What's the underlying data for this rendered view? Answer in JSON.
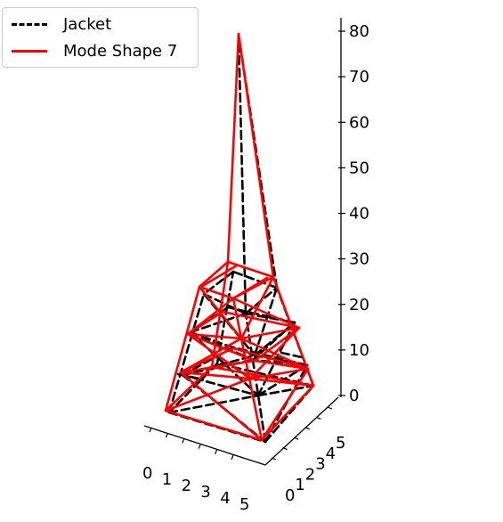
{
  "chart_data": {
    "type": "line",
    "projection": "3d",
    "legend": {
      "placement": "top-left",
      "entries": [
        {
          "label": "Jacket",
          "style": "dashed",
          "color": "#000000"
        },
        {
          "label": "Mode Shape 7",
          "style": "solid",
          "color": "#ff0000"
        }
      ]
    },
    "axes": {
      "x": {
        "ticks": [
          "0",
          "1",
          "2",
          "3",
          "4",
          "5"
        ],
        "range": [
          0,
          5
        ]
      },
      "y": {
        "ticks": [
          "0",
          "1",
          "2",
          "3",
          "4",
          "5"
        ],
        "range": [
          0,
          5
        ]
      },
      "z": {
        "ticks": [
          "0",
          "10",
          "20",
          "30",
          "40",
          "50",
          "60",
          "70",
          "80"
        ],
        "range": [
          0,
          82
        ]
      }
    },
    "series": [
      {
        "name": "Jacket",
        "style": "dashed",
        "color": "#000000"
      },
      {
        "name": "Mode Shape 7",
        "style": "solid",
        "color": "#ff0000"
      }
    ]
  }
}
